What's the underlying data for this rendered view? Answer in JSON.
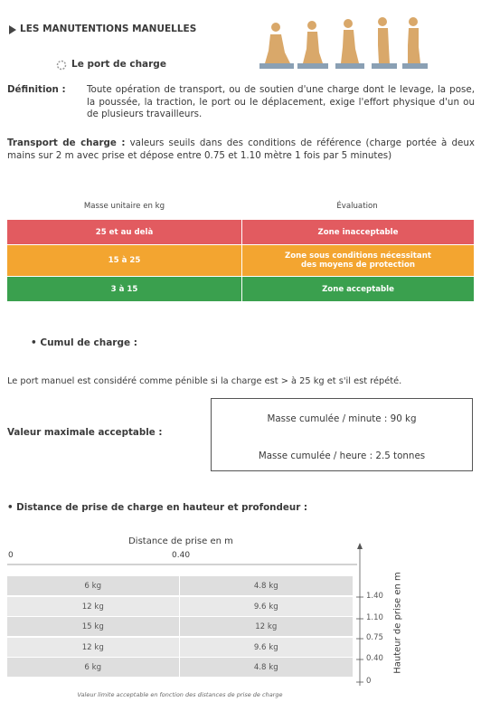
{
  "header": {
    "title": "LES MANUTENTIONS MANUELLES",
    "subtitle": "Le port de charge"
  },
  "definition": {
    "label": "Définition :",
    "text": "Toute opération de transport, ou de soutien d'une charge dont le levage, la pose, la poussée, la traction, le port ou le déplacement, exige l'effort physique d'un ou de plusieurs travailleurs."
  },
  "transport": {
    "label": "Transport de charge :",
    "text": "valeurs seuils dans des conditions de référence (charge portée à deux mains sur 2 m avec prise et dépose entre 0.75 et 1.10 mètre 1 fois par 5 minutes)"
  },
  "table": {
    "headers": [
      "Masse unitaire en kg",
      "Évaluation"
    ],
    "rows": [
      [
        "25 et au delà",
        "Zone inacceptable"
      ],
      [
        "15 à 25",
        "Zone sous conditions nécessitant des moyens de protection"
      ],
      [
        "3 à 15",
        "Zone acceptable"
      ]
    ]
  },
  "cumul": {
    "title": "Cumul de charge :",
    "text": "Le port manuel est considéré comme pénible si la charge est > à 25 kg et s'il est répété."
  },
  "max_value": {
    "label": "Valeur maximale acceptable :",
    "lines": [
      "Masse cumulée / minute : 90 kg",
      "Masse cumulée / heure : 2.5 tonnes"
    ]
  },
  "distance": {
    "title": "Distance de prise de charge en hauteur et profondeur :",
    "x_label": "Distance de prise en m",
    "x_ticks": [
      "0",
      "0.40"
    ],
    "rows": [
      [
        "6 kg",
        "4.8 kg"
      ],
      [
        "12 kg",
        "9.6 kg"
      ],
      [
        "15 kg",
        "12 kg"
      ],
      [
        "12 kg",
        "9.6 kg"
      ],
      [
        "6 kg",
        "4.8 kg"
      ]
    ],
    "y_label": "Hauteur de prise en m",
    "y_ticks": [
      "1.40",
      "1.10",
      "0.75",
      "0.40",
      "0"
    ],
    "caption": "Valeur limite acceptable en fonction des distances de prise de charge"
  }
}
